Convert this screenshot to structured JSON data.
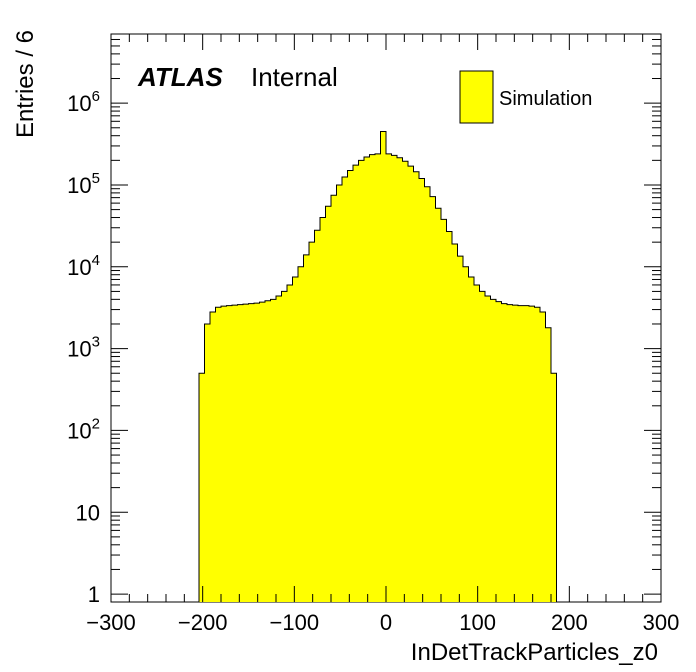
{
  "chart_data": {
    "type": "histogram",
    "xlabel": "InDetTrackParticles_z0",
    "ylabel": "Entries / 6",
    "xlim": [
      -300,
      300
    ],
    "ylim": [
      0.8,
      7000000
    ],
    "yscale": "log",
    "x_ticks": [
      {
        "value": -300,
        "label": "−300"
      },
      {
        "value": -200,
        "label": "−200"
      },
      {
        "value": -100,
        "label": "−100"
      },
      {
        "value": 0,
        "label": "0"
      },
      {
        "value": 100,
        "label": "100"
      },
      {
        "value": 200,
        "label": "200"
      },
      {
        "value": 300,
        "label": "300"
      }
    ],
    "y_ticks": [
      {
        "value": 1,
        "base": "1",
        "exp": ""
      },
      {
        "value": 10,
        "base": "10",
        "exp": ""
      },
      {
        "value": 100,
        "base": "10",
        "exp": "2"
      },
      {
        "value": 1000,
        "base": "10",
        "exp": "3"
      },
      {
        "value": 10000,
        "base": "10",
        "exp": "4"
      },
      {
        "value": 100000,
        "base": "10",
        "exp": "5"
      },
      {
        "value": 1000000,
        "base": "10",
        "exp": "6"
      }
    ],
    "annotations": {
      "atlas": "ATLAS",
      "status": "Internal"
    },
    "legend": {
      "position": "top-right"
    },
    "series": [
      {
        "name": "Simulation",
        "color": "#ffff00",
        "edge_color": "#000000",
        "bin_width": 6,
        "x_start": -204,
        "values": [
          500,
          2000,
          2800,
          3200,
          3300,
          3350,
          3400,
          3450,
          3500,
          3550,
          3600,
          3700,
          3850,
          4000,
          4400,
          5000,
          6000,
          7500,
          10000,
          14000,
          20000,
          28000,
          40000,
          55000,
          75000,
          100000,
          125000,
          150000,
          175000,
          200000,
          220000,
          235000,
          240000,
          450000,
          240000,
          230000,
          215000,
          195000,
          170000,
          145000,
          120000,
          95000,
          72000,
          52000,
          38000,
          27000,
          19000,
          13500,
          10000,
          7500,
          6000,
          5000,
          4400,
          4000,
          3750,
          3550,
          3450,
          3400,
          3350,
          3350,
          3300,
          3200,
          2800,
          1800,
          500
        ]
      }
    ]
  }
}
